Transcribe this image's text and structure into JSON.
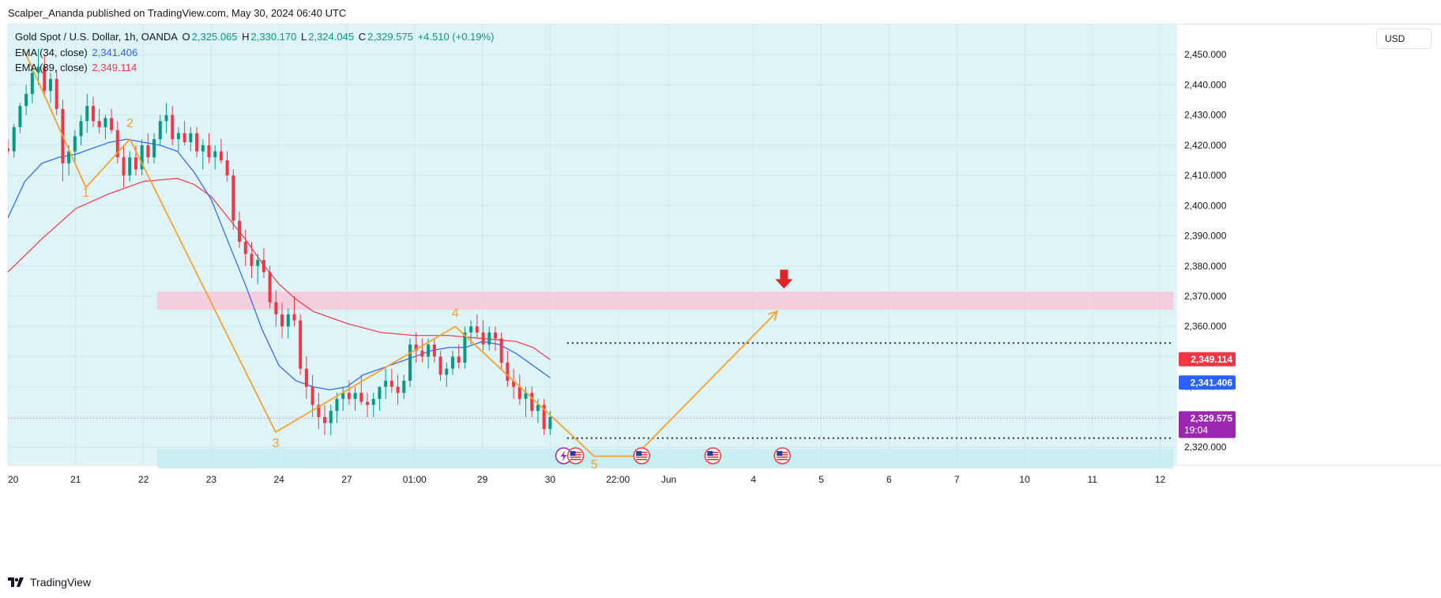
{
  "header": {
    "published_text": "Scalper_Ananda published on TradingView.com, May 30, 2024 06:40 UTC"
  },
  "legend": {
    "symbol": "Gold Spot / U.S. Dollar, 1h, OANDA",
    "open_label": "O",
    "open": "2,325.065",
    "high_label": "H",
    "high": "2,330.170",
    "low_label": "L",
    "low": "2,324.045",
    "close_label": "C",
    "close": "2,329.575",
    "change": "+4.510 (+0.19%)",
    "ema34_label": "EMA (34, close)",
    "ema34_value": "2,341.406",
    "ema89_label": "EMA (89, close)",
    "ema89_value": "2,349.114"
  },
  "currency": "USD",
  "brand": "TradingView",
  "colors": {
    "up": "#089981",
    "down": "#f23645",
    "ema34": "#2962ff",
    "ema89": "#f23645",
    "wave": "#f7a130",
    "resistance_zone": "#f8c8d8",
    "support_zone": "#c4ecf0",
    "background": "#dff4f7",
    "current_price": "#9c27b0"
  },
  "chart_data": {
    "type": "candlestick",
    "timeframe": "1h",
    "ylim": [
      2314,
      2460
    ],
    "yticks": [
      "2,450.000",
      "2,440.000",
      "2,430.000",
      "2,420.000",
      "2,410.000",
      "2,400.000",
      "2,390.000",
      "2,380.000",
      "2,370.000",
      "2,360.000",
      "2,350.000",
      "2,340.000",
      "2,330.000",
      "2,320.000"
    ],
    "ytick_values": [
      2450,
      2440,
      2430,
      2420,
      2410,
      2400,
      2390,
      2380,
      2370,
      2360,
      2350,
      2340,
      2330,
      2320
    ],
    "xticks": [
      {
        "label": "20",
        "t": 0
      },
      {
        "label": "21",
        "t": 20
      },
      {
        "label": "22",
        "t": 40
      },
      {
        "label": "23",
        "t": 60
      },
      {
        "label": "24",
        "t": 80
      },
      {
        "label": "27",
        "t": 100
      },
      {
        "label": "01:00",
        "t": 120
      },
      {
        "label": "29",
        "t": 140
      },
      {
        "label": "30",
        "t": 160
      },
      {
        "label": "22:00",
        "t": 180
      },
      {
        "label": "Jun",
        "t": 195
      },
      {
        "label": "4",
        "t": 220
      },
      {
        "label": "5",
        "t": 240
      },
      {
        "label": "6",
        "t": 260
      },
      {
        "label": "7",
        "t": 280
      },
      {
        "label": "10",
        "t": 300
      },
      {
        "label": "11",
        "t": 320
      },
      {
        "label": "12",
        "t": 340
      }
    ],
    "xlim": [
      0,
      345
    ],
    "price_tags": [
      {
        "name": "ema89",
        "label": "2,349.114",
        "value": 2349.114,
        "color": "#f23645"
      },
      {
        "name": "ema34",
        "label": "2,341.406",
        "value": 2341.406,
        "color": "#2962ff"
      },
      {
        "name": "last",
        "label": "2,329.575",
        "sub": "19:04",
        "value": 2329.575,
        "color": "#9c27b0"
      }
    ],
    "ema34": [
      [
        0,
        2396
      ],
      [
        5,
        2408
      ],
      [
        10,
        2414
      ],
      [
        15,
        2416
      ],
      [
        20,
        2417
      ],
      [
        25,
        2419
      ],
      [
        30,
        2421
      ],
      [
        35,
        2422
      ],
      [
        40,
        2421
      ],
      [
        45,
        2420
      ],
      [
        50,
        2418
      ],
      [
        55,
        2411
      ],
      [
        60,
        2402
      ],
      [
        65,
        2388
      ],
      [
        70,
        2374
      ],
      [
        75,
        2359
      ],
      [
        80,
        2347
      ],
      [
        85,
        2342
      ],
      [
        90,
        2340
      ],
      [
        95,
        2339
      ],
      [
        100,
        2340
      ],
      [
        105,
        2344
      ],
      [
        110,
        2346
      ],
      [
        115,
        2348
      ],
      [
        120,
        2350
      ],
      [
        125,
        2352
      ],
      [
        130,
        2353
      ],
      [
        135,
        2353
      ],
      [
        140,
        2355
      ],
      [
        145,
        2354
      ],
      [
        150,
        2351
      ],
      [
        155,
        2347
      ],
      [
        160,
        2343
      ]
    ],
    "ema89": [
      [
        0,
        2378
      ],
      [
        10,
        2389
      ],
      [
        20,
        2399
      ],
      [
        30,
        2404
      ],
      [
        40,
        2408
      ],
      [
        50,
        2409
      ],
      [
        55,
        2407
      ],
      [
        60,
        2403
      ],
      [
        65,
        2396
      ],
      [
        70,
        2389
      ],
      [
        75,
        2381
      ],
      [
        80,
        2374
      ],
      [
        85,
        2369
      ],
      [
        90,
        2365
      ],
      [
        100,
        2361
      ],
      [
        110,
        2358
      ],
      [
        120,
        2357
      ],
      [
        130,
        2357
      ],
      [
        140,
        2356
      ],
      [
        150,
        2355
      ],
      [
        155,
        2353
      ],
      [
        160,
        2349
      ]
    ],
    "candles": [
      [
        0,
        2419,
        2422,
        2417,
        2418
      ],
      [
        1,
        2418,
        2427,
        2416,
        2426
      ],
      [
        2,
        2426,
        2434,
        2424,
        2433
      ],
      [
        3,
        2433,
        2440,
        2430,
        2437
      ],
      [
        4,
        2437,
        2446,
        2434,
        2444
      ],
      [
        5,
        2444,
        2452,
        2440,
        2446
      ],
      [
        6,
        2446,
        2450,
        2436,
        2438
      ],
      [
        7,
        2438,
        2444,
        2434,
        2442
      ],
      [
        8,
        2442,
        2445,
        2430,
        2432
      ],
      [
        9,
        2432,
        2435,
        2408,
        2414
      ],
      [
        10,
        2414,
        2420,
        2410,
        2418
      ],
      [
        11,
        2418,
        2425,
        2414,
        2423
      ],
      [
        12,
        2423,
        2430,
        2420,
        2428
      ],
      [
        13,
        2428,
        2437,
        2424,
        2433
      ],
      [
        14,
        2433,
        2436,
        2426,
        2428
      ],
      [
        15,
        2428,
        2432,
        2424,
        2426
      ],
      [
        16,
        2426,
        2430,
        2422,
        2429
      ],
      [
        17,
        2429,
        2432,
        2424,
        2425
      ],
      [
        18,
        2425,
        2428,
        2414,
        2416
      ],
      [
        19,
        2416,
        2420,
        2406,
        2410
      ],
      [
        20,
        2410,
        2418,
        2408,
        2416
      ],
      [
        21,
        2416,
        2420,
        2410,
        2412
      ],
      [
        22,
        2412,
        2422,
        2410,
        2420
      ],
      [
        23,
        2420,
        2424,
        2414,
        2416
      ],
      [
        24,
        2416,
        2424,
        2414,
        2422
      ],
      [
        25,
        2422,
        2430,
        2420,
        2428
      ],
      [
        26,
        2428,
        2434,
        2424,
        2430
      ],
      [
        27,
        2430,
        2433,
        2420,
        2422
      ],
      [
        28,
        2422,
        2426,
        2418,
        2424
      ],
      [
        29,
        2424,
        2428,
        2420,
        2421
      ],
      [
        30,
        2421,
        2426,
        2418,
        2424
      ],
      [
        31,
        2424,
        2426,
        2416,
        2418
      ],
      [
        32,
        2418,
        2422,
        2412,
        2420
      ],
      [
        33,
        2420,
        2424,
        2414,
        2416
      ],
      [
        34,
        2416,
        2420,
        2412,
        2418
      ],
      [
        35,
        2418,
        2422,
        2414,
        2415
      ],
      [
        36,
        2415,
        2418,
        2408,
        2410
      ],
      [
        37,
        2410,
        2412,
        2392,
        2395
      ],
      [
        38,
        2395,
        2398,
        2386,
        2388
      ],
      [
        39,
        2388,
        2392,
        2380,
        2384
      ],
      [
        40,
        2384,
        2388,
        2376,
        2380
      ],
      [
        41,
        2380,
        2384,
        2374,
        2382
      ],
      [
        42,
        2382,
        2386,
        2376,
        2378
      ],
      [
        43,
        2378,
        2380,
        2366,
        2368
      ],
      [
        44,
        2368,
        2372,
        2360,
        2364
      ],
      [
        45,
        2364,
        2368,
        2356,
        2360
      ],
      [
        46,
        2360,
        2366,
        2356,
        2364
      ],
      [
        47,
        2364,
        2370,
        2360,
        2362
      ],
      [
        48,
        2362,
        2364,
        2344,
        2346
      ],
      [
        49,
        2346,
        2350,
        2336,
        2340
      ],
      [
        50,
        2340,
        2344,
        2330,
        2334
      ],
      [
        51,
        2334,
        2338,
        2326,
        2330
      ],
      [
        52,
        2330,
        2334,
        2324,
        2328
      ],
      [
        53,
        2328,
        2334,
        2324,
        2332
      ],
      [
        54,
        2332,
        2338,
        2328,
        2336
      ],
      [
        55,
        2336,
        2340,
        2332,
        2338
      ],
      [
        56,
        2338,
        2342,
        2334,
        2336
      ],
      [
        57,
        2336,
        2340,
        2332,
        2338
      ],
      [
        58,
        2338,
        2344,
        2334,
        2335
      ],
      [
        59,
        2335,
        2338,
        2330,
        2334
      ],
      [
        60,
        2334,
        2338,
        2330,
        2336
      ],
      [
        61,
        2336,
        2340,
        2332,
        2340
      ],
      [
        62,
        2340,
        2346,
        2336,
        2342
      ],
      [
        63,
        2342,
        2346,
        2338,
        2340
      ],
      [
        64,
        2340,
        2344,
        2334,
        2338
      ],
      [
        65,
        2338,
        2344,
        2336,
        2342
      ],
      [
        66,
        2342,
        2356,
        2340,
        2354
      ],
      [
        67,
        2354,
        2358,
        2348,
        2352
      ],
      [
        68,
        2352,
        2356,
        2348,
        2350
      ],
      [
        69,
        2350,
        2356,
        2346,
        2354
      ],
      [
        70,
        2354,
        2356,
        2348,
        2350
      ],
      [
        71,
        2350,
        2352,
        2342,
        2344
      ],
      [
        72,
        2344,
        2348,
        2340,
        2346
      ],
      [
        73,
        2346,
        2352,
        2344,
        2350
      ],
      [
        74,
        2350,
        2354,
        2346,
        2348
      ],
      [
        75,
        2348,
        2360,
        2346,
        2358
      ],
      [
        76,
        2358,
        2362,
        2354,
        2360
      ],
      [
        77,
        2360,
        2364,
        2356,
        2358
      ],
      [
        78,
        2358,
        2362,
        2352,
        2354
      ],
      [
        79,
        2354,
        2360,
        2352,
        2358
      ],
      [
        80,
        2358,
        2360,
        2352,
        2356
      ],
      [
        81,
        2356,
        2358,
        2346,
        2348
      ],
      [
        82,
        2348,
        2352,
        2340,
        2342
      ],
      [
        83,
        2342,
        2346,
        2336,
        2340
      ],
      [
        84,
        2340,
        2344,
        2334,
        2336
      ],
      [
        85,
        2336,
        2340,
        2330,
        2338
      ],
      [
        86,
        2338,
        2340,
        2330,
        2332
      ],
      [
        87,
        2332,
        2336,
        2328,
        2334
      ],
      [
        88,
        2334,
        2336,
        2324,
        2326
      ],
      [
        89,
        2326,
        2332,
        2324,
        2330
      ]
    ],
    "zones": [
      {
        "name": "resistance",
        "from": 2365.5,
        "to": 2371.5,
        "t_start": 44,
        "t_end": 344
      },
      {
        "name": "support",
        "from": 2313,
        "to": 2319.5,
        "t_start": 44,
        "t_end": 344
      }
    ],
    "dotted_levels": [
      {
        "value": 2354.5,
        "t_start": 165,
        "t_end": 344
      },
      {
        "value": 2323.0,
        "t_start": 165,
        "t_end": 344
      },
      {
        "value": 2329.575,
        "t_start": 0,
        "t_end": 344
      }
    ],
    "wave_path": [
      [
        5,
        2451
      ],
      [
        23,
        2406
      ],
      [
        36,
        2422
      ],
      [
        79,
        2325
      ],
      [
        132,
        2360
      ],
      [
        173,
        2317
      ],
      [
        185,
        2317
      ],
      [
        227,
        2365
      ]
    ],
    "wave_labels": [
      {
        "text": "1",
        "t": 23,
        "v": 2403
      },
      {
        "text": "2",
        "t": 36,
        "v": 2426
      },
      {
        "text": "3",
        "t": 79,
        "v": 2320
      },
      {
        "text": "4",
        "t": 132,
        "v": 2363
      },
      {
        "text": "5",
        "t": 173,
        "v": 2313
      }
    ],
    "sell_arrow": {
      "t": 229,
      "v": 2372
    }
  }
}
